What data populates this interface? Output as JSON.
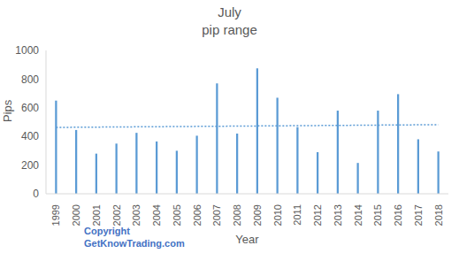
{
  "chart_data": {
    "type": "bar",
    "title": "July\npip range",
    "x_label": "Year",
    "y_label": "Pips",
    "annotations": [
      "Copyright",
      "GetKnowTrading.com"
    ],
    "categories": [
      "1999",
      "2000",
      "2001",
      "2002",
      "2003",
      "2004",
      "2005",
      "2006",
      "2007",
      "2008",
      "2009",
      "2010",
      "2011",
      "2012",
      "2013",
      "2014",
      "2015",
      "2016",
      "2017",
      "2018"
    ],
    "series": [
      {
        "type": "bar",
        "color": "#5b9bd5",
        "values": [
          650,
          445,
          280,
          350,
          425,
          365,
          300,
          405,
          770,
          420,
          875,
          670,
          465,
          290,
          580,
          215,
          580,
          695,
          380,
          295
        ]
      },
      {
        "type": "line",
        "line_style": "dotted",
        "color": "#5b9bd5",
        "values": [
          463,
          464,
          465,
          466,
          467,
          468,
          469,
          470,
          471,
          472,
          473,
          474,
          475,
          476,
          477,
          478,
          479,
          480,
          481,
          482
        ]
      }
    ],
    "ylim": [
      0,
      1000
    ],
    "yticks": [
      0,
      200,
      400,
      600,
      800,
      1000
    ],
    "grid": false
  }
}
